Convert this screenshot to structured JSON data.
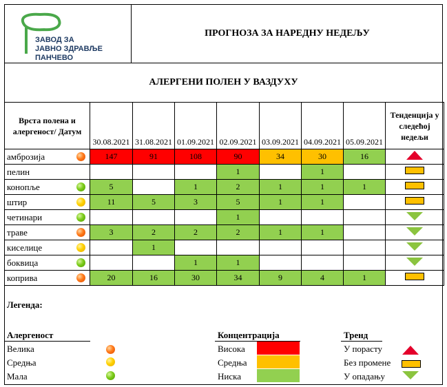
{
  "logo": {
    "line1": "ЗАВОД ЗА",
    "line2": "ЈАВНО ЗДРАВЉЕ",
    "line3": "ПАНЧЕВО"
  },
  "title": "ПРОГНОЗА ЗА НАРЕДНУ НЕДЕЉУ",
  "subtitle": "АЛЕРГЕНИ ПОЛЕН У ВАЗДУХУ",
  "table": {
    "header_type": "Врста полена и алергеност/ Датум",
    "header_trend": "Тенденција у следећој недељи",
    "dates": [
      "30.08.2021",
      "31.08.2021",
      "01.09.2021",
      "02.09.2021",
      "03.09.2021",
      "04.09.2021",
      "05.09.2021"
    ],
    "rows": [
      {
        "name": "амброзија",
        "allergen": "high",
        "values": [
          "147",
          "91",
          "108",
          "90",
          "34",
          "30",
          "16"
        ],
        "colors": [
          "red",
          "red",
          "red",
          "red",
          "orange",
          "orange",
          "green"
        ],
        "trend": "up"
      },
      {
        "name": "пелин",
        "allergen": "none",
        "values": [
          "",
          "",
          "",
          "1",
          "",
          "1",
          ""
        ],
        "colors": [
          "",
          "",
          "",
          "green",
          "",
          "green",
          ""
        ],
        "trend": "flat"
      },
      {
        "name": "конопље",
        "allergen": "low",
        "values": [
          "5",
          "",
          "1",
          "2",
          "1",
          "1",
          "1"
        ],
        "colors": [
          "green",
          "",
          "green",
          "green",
          "green",
          "green",
          "green"
        ],
        "trend": "flat"
      },
      {
        "name": "штир",
        "allergen": "mid",
        "values": [
          "11",
          "5",
          "3",
          "5",
          "1",
          "1",
          ""
        ],
        "colors": [
          "green",
          "green",
          "green",
          "green",
          "green",
          "green",
          ""
        ],
        "trend": "flat"
      },
      {
        "name": "четинари",
        "allergen": "low",
        "values": [
          "",
          "",
          "",
          "1",
          "",
          "",
          ""
        ],
        "colors": [
          "",
          "",
          "",
          "green",
          "",
          "",
          ""
        ],
        "trend": "down"
      },
      {
        "name": "траве",
        "allergen": "high",
        "values": [
          "3",
          "2",
          "2",
          "2",
          "1",
          "1",
          ""
        ],
        "colors": [
          "green",
          "green",
          "green",
          "green",
          "green",
          "green",
          ""
        ],
        "trend": "down"
      },
      {
        "name": "киселице",
        "allergen": "mid",
        "values": [
          "",
          "1",
          "",
          "",
          "",
          "",
          ""
        ],
        "colors": [
          "",
          "green",
          "",
          "",
          "",
          "",
          ""
        ],
        "trend": "down"
      },
      {
        "name": "боквица",
        "allergen": "low",
        "values": [
          "",
          "",
          "1",
          "1",
          "",
          "",
          ""
        ],
        "colors": [
          "",
          "",
          "green",
          "green",
          "",
          "",
          ""
        ],
        "trend": "down"
      },
      {
        "name": "коприва",
        "allergen": "high",
        "values": [
          "20",
          "16",
          "30",
          "34",
          "9",
          "4",
          "1"
        ],
        "colors": [
          "green",
          "green",
          "green",
          "green",
          "green",
          "green",
          "green"
        ],
        "trend": "flat"
      }
    ]
  },
  "legend": {
    "title": "Легенда:",
    "allergenicity": {
      "heading": "Алергеност",
      "items": [
        {
          "label": "Велика",
          "level": "high"
        },
        {
          "label": "Средња",
          "level": "mid"
        },
        {
          "label": "Мала",
          "level": "low"
        }
      ]
    },
    "concentration": {
      "heading": "Концентрација",
      "items": [
        {
          "label": "Висока",
          "color": "#ff0000"
        },
        {
          "label": "Средња",
          "color": "#ffc000"
        },
        {
          "label": "Ниска",
          "color": "#92d050"
        }
      ]
    },
    "trend": {
      "heading": "Тренд",
      "items": [
        {
          "label": "У порасту",
          "icon": "up"
        },
        {
          "label": "Без промене",
          "icon": "flat"
        },
        {
          "label": "У опадању",
          "icon": "down"
        }
      ]
    }
  }
}
